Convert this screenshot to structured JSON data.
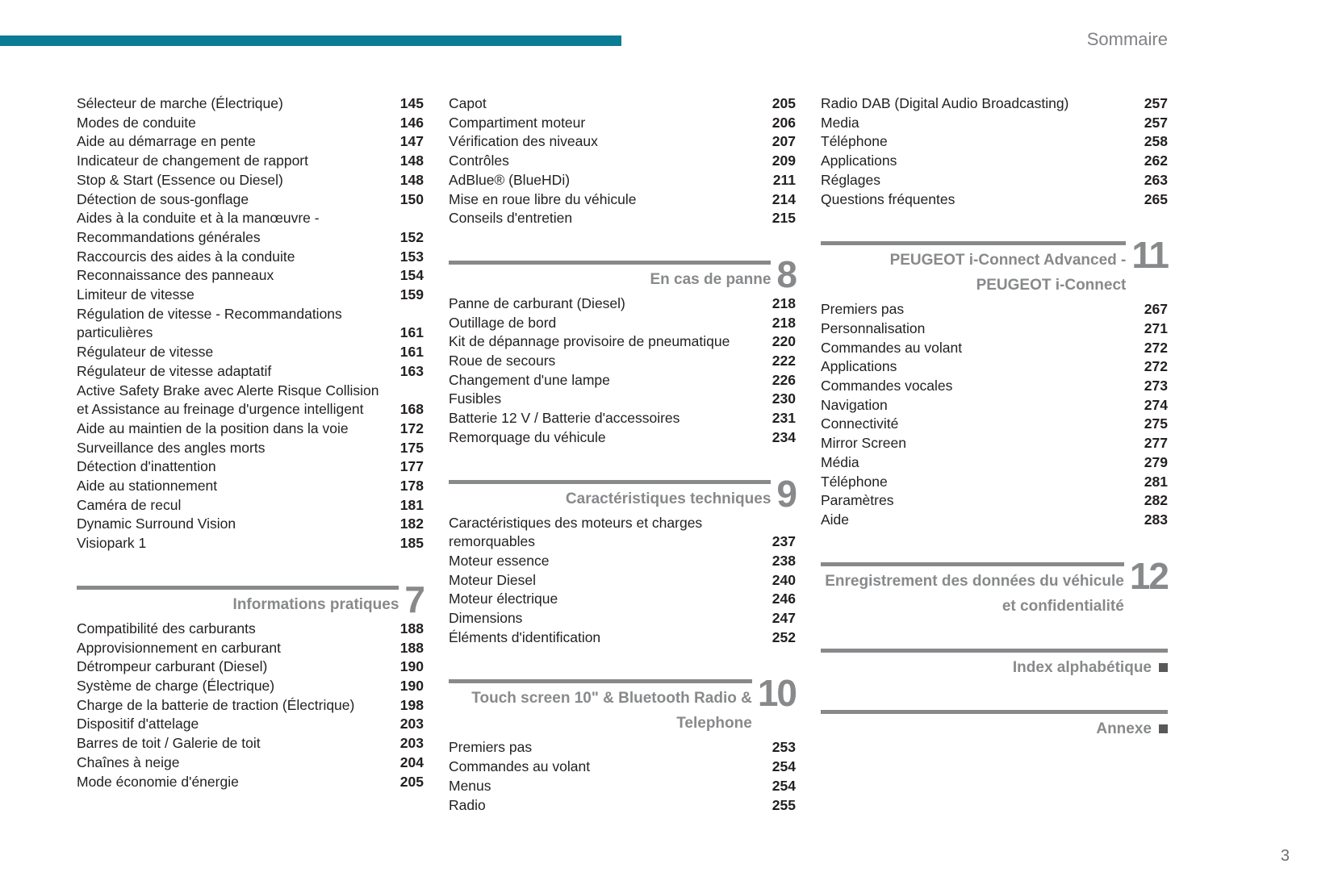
{
  "header": {
    "label": "Sommaire"
  },
  "footer": {
    "page_number": "3"
  },
  "colors": {
    "accent_bar": "#0b7c95",
    "section_gray": "#87898b",
    "text": "#231f20",
    "marker_square": "#58595b"
  },
  "toc_columns": [
    {
      "blocks": [
        {
          "section_number": null,
          "title_lines": null,
          "marker": false,
          "entries": [
            {
              "label": "Sélecteur de marche (Électrique)",
              "page": "145"
            },
            {
              "label": "Modes de conduite",
              "page": "146"
            },
            {
              "label": "Aide au démarrage en pente",
              "page": "147"
            },
            {
              "label": "Indicateur de changement de rapport",
              "page": "148"
            },
            {
              "label": "Stop & Start (Essence ou Diesel)",
              "page": "148"
            },
            {
              "label": "Détection de sous-gonflage",
              "page": "150"
            },
            {
              "label": "Aides à la conduite et à la manœuvre - Recommandations générales",
              "page": "152"
            },
            {
              "label": "Raccourcis des aides à la conduite",
              "page": "153"
            },
            {
              "label": "Reconnaissance des panneaux",
              "page": "154"
            },
            {
              "label": "Limiteur de vitesse",
              "page": "159"
            },
            {
              "label": "Régulation de vitesse - Recommandations particulières",
              "page": "161"
            },
            {
              "label": "Régulateur de vitesse",
              "page": "161"
            },
            {
              "label": "Régulateur de vitesse adaptatif",
              "page": "163"
            },
            {
              "label": "Active Safety Brake avec Alerte Risque Collision et Assistance au freinage d'urgence intelligent",
              "page": "168"
            },
            {
              "label": "Aide au maintien de la position dans la voie",
              "page": "172"
            },
            {
              "label": "Surveillance des angles morts",
              "page": "175"
            },
            {
              "label": "Détection d'inattention",
              "page": "177"
            },
            {
              "label": "Aide au stationnement",
              "page": "178"
            },
            {
              "label": "Caméra de recul",
              "page": "181"
            },
            {
              "label": "Dynamic Surround Vision",
              "page": "182"
            },
            {
              "label": "Visiopark 1",
              "page": "185"
            }
          ]
        },
        {
          "section_number": "7",
          "title_lines": [
            "Informations pratiques"
          ],
          "marker": false,
          "entries": [
            {
              "label": "Compatibilité des carburants",
              "page": "188"
            },
            {
              "label": "Approvisionnement en carburant",
              "page": "188"
            },
            {
              "label": "Détrompeur carburant (Diesel)",
              "page": "190"
            },
            {
              "label": "Système de charge (Électrique)",
              "page": "190"
            },
            {
              "label": "Charge de la batterie de traction (Électrique)",
              "page": "198"
            },
            {
              "label": "Dispositif d'attelage",
              "page": "203"
            },
            {
              "label": "Barres de toit / Galerie de toit",
              "page": "203"
            },
            {
              "label": "Chaînes à neige",
              "page": "204"
            },
            {
              "label": "Mode économie d'énergie",
              "page": "205"
            }
          ]
        }
      ]
    },
    {
      "blocks": [
        {
          "section_number": null,
          "title_lines": null,
          "marker": false,
          "entries": [
            {
              "label": "Capot",
              "page": "205"
            },
            {
              "label": "Compartiment moteur",
              "page": "206"
            },
            {
              "label": "Vérification des niveaux",
              "page": "207"
            },
            {
              "label": "Contrôles",
              "page": "209"
            },
            {
              "label": "AdBlue® (BlueHDi)",
              "page": "211"
            },
            {
              "label": "Mise en roue libre du véhicule",
              "page": "214"
            },
            {
              "label": "Conseils d'entretien",
              "page": "215"
            }
          ]
        },
        {
          "section_number": "8",
          "title_lines": [
            "En cas de panne"
          ],
          "marker": false,
          "entries": [
            {
              "label": "Panne de carburant (Diesel)",
              "page": "218"
            },
            {
              "label": "Outillage de bord",
              "page": "218"
            },
            {
              "label": "Kit de dépannage provisoire de pneumatique",
              "page": "220"
            },
            {
              "label": "Roue de secours",
              "page": "222"
            },
            {
              "label": "Changement d'une lampe",
              "page": "226"
            },
            {
              "label": "Fusibles",
              "page": "230"
            },
            {
              "label": "Batterie 12 V / Batterie d'accessoires",
              "page": "231"
            },
            {
              "label": "Remorquage du véhicule",
              "page": "234"
            }
          ]
        },
        {
          "section_number": "9",
          "title_lines": [
            "Caractéristiques techniques"
          ],
          "marker": false,
          "entries": [
            {
              "label": "Caractéristiques des moteurs et charges remorquables",
              "page": "237"
            },
            {
              "label": "Moteur essence",
              "page": "238"
            },
            {
              "label": "Moteur Diesel",
              "page": "240"
            },
            {
              "label": "Moteur électrique",
              "page": "246"
            },
            {
              "label": "Dimensions",
              "page": "247"
            },
            {
              "label": "Éléments d'identification",
              "page": "252"
            }
          ]
        },
        {
          "section_number": "10",
          "title_lines": [
            "Touch screen 10\" & Bluetooth Radio &",
            "Telephone"
          ],
          "marker": false,
          "entries": [
            {
              "label": "Premiers pas",
              "page": "253"
            },
            {
              "label": "Commandes au volant",
              "page": "254"
            },
            {
              "label": "Menus",
              "page": "254"
            },
            {
              "label": "Radio",
              "page": "255"
            }
          ]
        }
      ]
    },
    {
      "blocks": [
        {
          "section_number": null,
          "title_lines": null,
          "marker": false,
          "entries": [
            {
              "label": "Radio DAB (Digital Audio Broadcasting)",
              "page": "257"
            },
            {
              "label": "Media",
              "page": "257"
            },
            {
              "label": "Téléphone",
              "page": "258"
            },
            {
              "label": "Applications",
              "page": "262"
            },
            {
              "label": "Réglages",
              "page": "263"
            },
            {
              "label": "Questions fréquentes",
              "page": "265"
            }
          ]
        },
        {
          "section_number": "11",
          "title_lines": [
            "PEUGEOT i-Connect Advanced -",
            "PEUGEOT i-Connect"
          ],
          "marker": false,
          "entries": [
            {
              "label": "Premiers pas",
              "page": "267"
            },
            {
              "label": "Personnalisation",
              "page": "271"
            },
            {
              "label": "Commandes au volant",
              "page": "272"
            },
            {
              "label": "Applications",
              "page": "272"
            },
            {
              "label": "Commandes vocales",
              "page": "273"
            },
            {
              "label": "Navigation",
              "page": "274"
            },
            {
              "label": "Connectivité",
              "page": "275"
            },
            {
              "label": "Mirror Screen",
              "page": "277"
            },
            {
              "label": "Média",
              "page": "279"
            },
            {
              "label": "Téléphone",
              "page": "281"
            },
            {
              "label": "Paramètres",
              "page": "282"
            },
            {
              "label": "Aide",
              "page": "283"
            }
          ]
        },
        {
          "section_number": "12",
          "title_lines": [
            "Enregistrement des données du véhicule",
            "et confidentialité"
          ],
          "marker": false,
          "entries": []
        },
        {
          "section_number": null,
          "title_lines": [
            "Index alphabétique"
          ],
          "marker": true,
          "entries": []
        },
        {
          "section_number": null,
          "title_lines": [
            "Annexe"
          ],
          "marker": true,
          "entries": []
        }
      ]
    }
  ]
}
